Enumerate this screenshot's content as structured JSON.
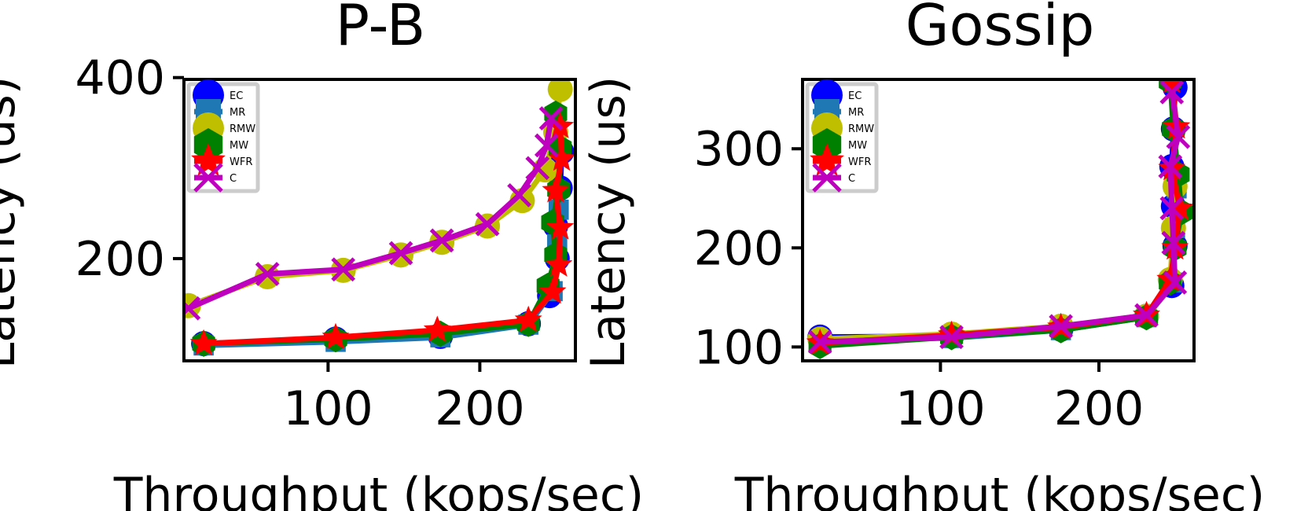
{
  "chart_data": [
    {
      "type": "line",
      "title": "P-B",
      "xlabel": "Throughput (kops/sec)",
      "ylabel": "Latency (us)",
      "xlim": [
        5,
        263
      ],
      "ylim": [
        87,
        398
      ],
      "xticks": [
        100,
        200
      ],
      "yticks": [
        200,
        400
      ],
      "grid": false,
      "legend_position": "top-left",
      "series": [
        {
          "name": "EC",
          "color": "#0000ff",
          "marker": "circle",
          "x": [
            18,
            105,
            174,
            232,
            246,
            251,
            250,
            253,
            254
          ],
          "y": [
            106,
            111,
            114,
            128,
            159,
            200,
            236,
            278,
            318
          ]
        },
        {
          "name": "MR",
          "color": "#1f77b4",
          "marker": "square",
          "x": [
            18,
            105,
            174,
            232,
            248,
            251,
            252
          ],
          "y": [
            104,
            108,
            113,
            127,
            164,
            216,
            254
          ]
        },
        {
          "name": "RMW",
          "color": "#bfbf00",
          "marker": "circle",
          "x": [
            8,
            60,
            110,
            148,
            175,
            205,
            228,
            243,
            250,
            253
          ],
          "y": [
            148,
            180,
            187,
            204,
            218,
            236,
            264,
            298,
            340,
            387
          ]
        },
        {
          "name": "MW",
          "color": "#008000",
          "marker": "hexagon",
          "x": [
            18,
            105,
            174,
            232,
            245,
            250,
            248,
            252,
            253,
            250
          ],
          "y": [
            106,
            111,
            117,
            128,
            170,
            204,
            240,
            276,
            322,
            360
          ]
        },
        {
          "name": "WFR",
          "color": "#ff0000",
          "marker": "star",
          "x": [
            18,
            105,
            172,
            232,
            248,
            252,
            253,
            250,
            254,
            253
          ],
          "y": [
            106,
            113,
            121,
            132,
            163,
            193,
            234,
            275,
            310,
            346
          ]
        },
        {
          "name": "C",
          "color": "#bf00bf",
          "marker": "x",
          "x": [
            8,
            60,
            110,
            148,
            175,
            205,
            226,
            238,
            244,
            247
          ],
          "y": [
            145,
            183,
            188,
            206,
            220,
            238,
            270,
            300,
            325,
            355
          ]
        }
      ]
    },
    {
      "type": "line",
      "title": "Gossip",
      "xlabel": "Throughput (kops/sec)",
      "ylabel": "Latency (us)",
      "xlim": [
        13,
        260
      ],
      "ylim": [
        86,
        370
      ],
      "xticks": [
        100,
        200
      ],
      "yticks": [
        100,
        200,
        300
      ],
      "grid": false,
      "legend_position": "top-left",
      "series": [
        {
          "name": "EC",
          "color": "#0000ff",
          "marker": "circle",
          "x": [
            24,
            107,
            176,
            230,
            246,
            248,
            247,
            246,
            247,
            248
          ],
          "y": [
            110,
            111,
            118,
            131,
            162,
            202,
            242,
            282,
            320,
            362
          ]
        },
        {
          "name": "MR",
          "color": "#1f77b4",
          "marker": "square",
          "x": [
            24,
            107,
            176,
            230,
            246,
            248,
            249
          ],
          "y": [
            107,
            109,
            117,
            130,
            165,
            220,
            260
          ]
        },
        {
          "name": "RMW",
          "color": "#bfbf00",
          "marker": "circle",
          "x": [
            24,
            107,
            176,
            230,
            245,
            247,
            248
          ],
          "y": [
            108,
            113,
            121,
            131,
            168,
            220,
            262
          ]
        },
        {
          "name": "MW",
          "color": "#008000",
          "marker": "hexagon",
          "x": [
            24,
            107,
            176,
            230,
            245,
            248,
            252,
            250,
            247,
            245
          ],
          "y": [
            101,
            110,
            117,
            130,
            165,
            200,
            236,
            274,
            320,
            368
          ]
        },
        {
          "name": "WFR",
          "color": "#ff0000",
          "marker": "star",
          "x": [
            24,
            107,
            176,
            230,
            245,
            248,
            251,
            246,
            249,
            246
          ],
          "y": [
            104,
            112,
            120,
            132,
            168,
            200,
            240,
            280,
            322,
            368
          ]
        },
        {
          "name": "C",
          "color": "#bf00bf",
          "marker": "x",
          "x": [
            24,
            107,
            176,
            230,
            248,
            247,
            246,
            245,
            250,
            246
          ],
          "y": [
            105,
            110,
            121,
            132,
            165,
            205,
            240,
            282,
            312,
            357
          ]
        }
      ]
    }
  ]
}
